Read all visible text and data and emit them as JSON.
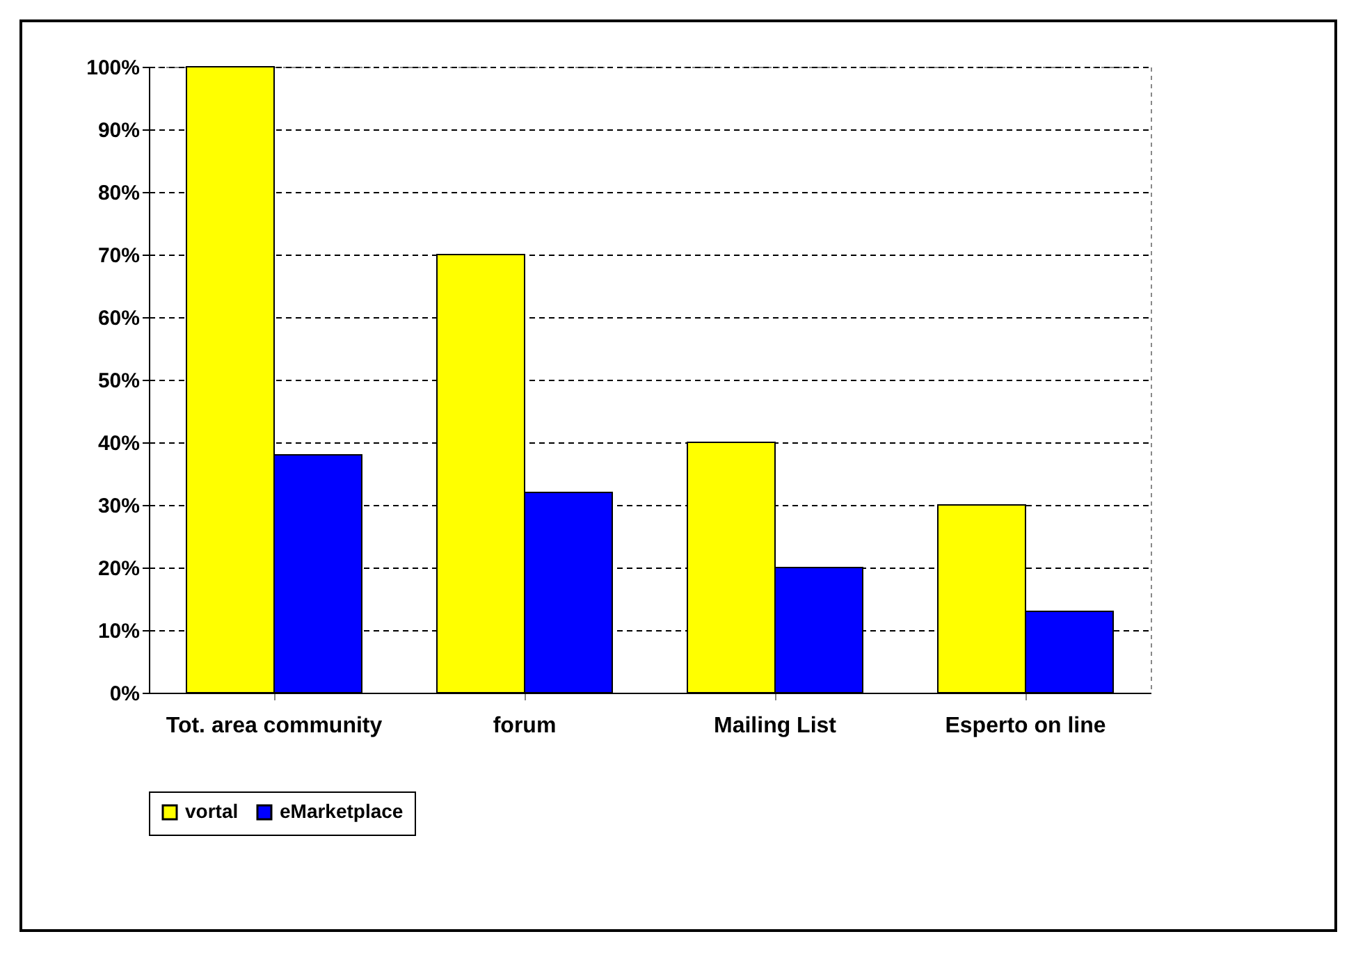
{
  "chart_data": {
    "type": "bar",
    "categories": [
      "Tot. area community",
      "forum",
      "Mailing List",
      "Esperto on line"
    ],
    "series": [
      {
        "name": "vortal",
        "color": "#ffff00",
        "values": [
          100,
          70,
          40,
          30
        ]
      },
      {
        "name": "eMarketplace",
        "color": "#0000ff",
        "values": [
          38,
          32,
          20,
          13
        ]
      }
    ],
    "ylim": [
      0,
      100
    ],
    "yticks": [
      {
        "value": 0,
        "label": "0%"
      },
      {
        "value": 10,
        "label": "10%"
      },
      {
        "value": 20,
        "label": "20%"
      },
      {
        "value": 30,
        "label": "30%"
      },
      {
        "value": 40,
        "label": "40%"
      },
      {
        "value": 50,
        "label": "50%"
      },
      {
        "value": 60,
        "label": "60%"
      },
      {
        "value": 70,
        "label": "70%"
      },
      {
        "value": 80,
        "label": "80%"
      },
      {
        "value": 90,
        "label": "90%"
      },
      {
        "value": 100,
        "label": "100%"
      }
    ],
    "grid": "y",
    "legend": "bottom"
  }
}
